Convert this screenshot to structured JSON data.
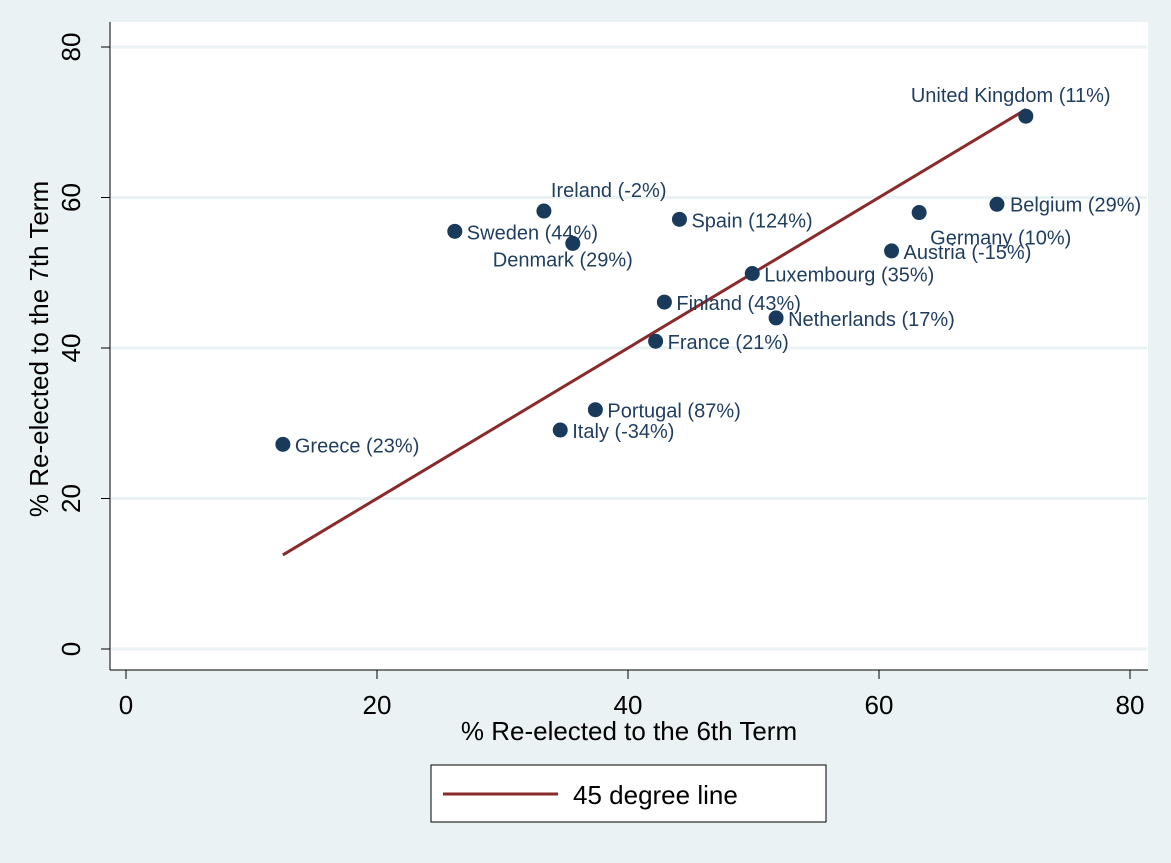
{
  "chart_data": {
    "type": "scatter",
    "title": "",
    "xlabel": "% Re-elected to the 6th Term",
    "ylabel": "% Re-elected to the 7th Term",
    "xlim": [
      0,
      80
    ],
    "ylim": [
      0,
      80
    ],
    "xticks": [
      "0",
      "20",
      "40",
      "60",
      "80"
    ],
    "yticks": [
      "0",
      "20",
      "40",
      "60",
      "80"
    ],
    "grid": true,
    "legend_position": "bottom",
    "colors": {
      "point": "#1a3a5c",
      "line": "#8b2a2a",
      "label": "#1f3d5f",
      "grid": "#eaf2f3",
      "background": "#eaf2f3",
      "plot_background": "#ffffff"
    },
    "series": [
      {
        "kind": "scatter",
        "points": [
          {
            "label": "United Kingdom (11%)",
            "x": 71.7,
            "y": 70.8
          },
          {
            "label": "Belgium (29%)",
            "x": 69.4,
            "y": 59.1
          },
          {
            "label": "Germany (10%)",
            "x": 63.2,
            "y": 58.0
          },
          {
            "label": "Austria (-15%)",
            "x": 61.0,
            "y": 52.9
          },
          {
            "label": "Luxembourg (35%)",
            "x": 49.9,
            "y": 49.9
          },
          {
            "label": "Netherlands (17%)",
            "x": 51.8,
            "y": 44.0
          },
          {
            "label": "Spain (124%)",
            "x": 44.1,
            "y": 57.1
          },
          {
            "label": "Finland (43%)",
            "x": 42.9,
            "y": 46.1
          },
          {
            "label": "France (21%)",
            "x": 42.2,
            "y": 40.9
          },
          {
            "label": "Ireland (-2%)",
            "x": 33.3,
            "y": 58.2
          },
          {
            "label": "Denmark (29%)",
            "x": 35.6,
            "y": 53.9
          },
          {
            "label": "Sweden (44%)",
            "x": 26.2,
            "y": 55.5
          },
          {
            "label": "Portugal (87%)",
            "x": 37.4,
            "y": 31.8
          },
          {
            "label": "Italy (-34%)",
            "x": 34.6,
            "y": 29.1
          },
          {
            "label": "Greece (23%)",
            "x": 12.5,
            "y": 27.2
          }
        ]
      },
      {
        "kind": "line",
        "name": "45 degree line",
        "x": [
          12.5,
          71.7
        ],
        "y": [
          12.5,
          71.7
        ]
      }
    ]
  }
}
